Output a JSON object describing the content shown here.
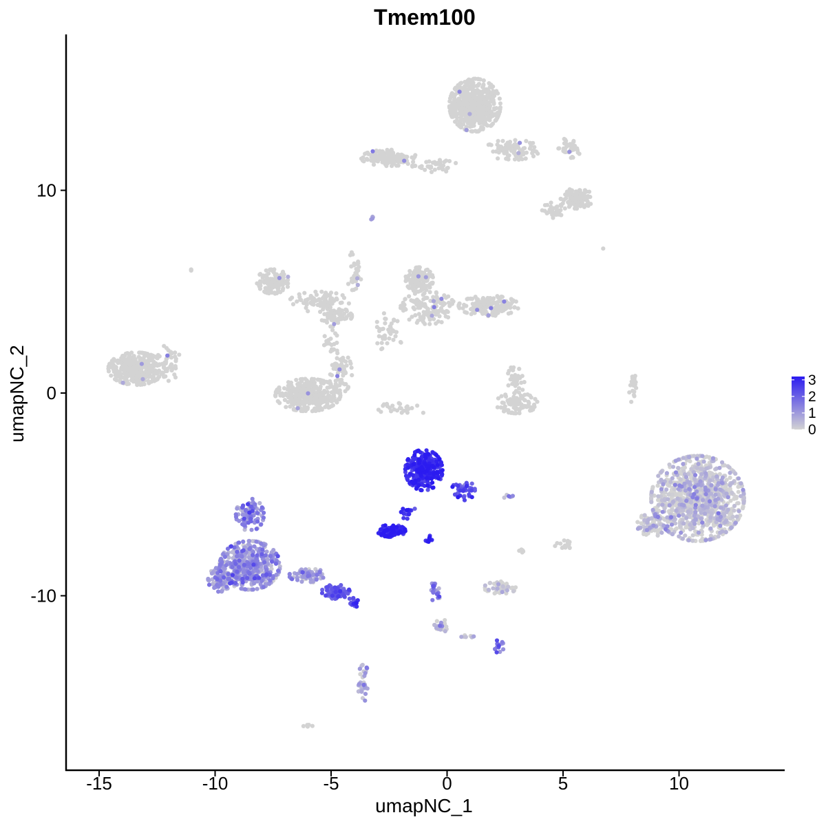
{
  "chart_data": {
    "type": "scatter",
    "title": "Tmem100",
    "xlabel": "umapNC_1",
    "ylabel": "umapNC_2",
    "xlim": [
      -16.5,
      14.5
    ],
    "ylim": [
      -18.5,
      17.5
    ],
    "x_ticks": [
      -15,
      -10,
      -5,
      0,
      5,
      10
    ],
    "x_tick_labels": [
      "-15",
      "-10",
      "-5",
      "0",
      "5",
      "10"
    ],
    "y_ticks": [
      -10,
      0,
      10
    ],
    "y_tick_labels": [
      "-10",
      "0",
      "10"
    ],
    "grid": false,
    "legend_position": "right",
    "color_scale": {
      "low_color": "#d3d3d3",
      "high_color": "#2b1bf0",
      "min": 0,
      "max": 3.2,
      "ticks": [
        0,
        1,
        2,
        3
      ],
      "tick_labels": [
        "0",
        "1",
        "2",
        "3"
      ]
    },
    "clusters": [
      {
        "cx": 1.2,
        "cy": 14.2,
        "rx": 1.1,
        "ry": 1.3,
        "n": 520,
        "expr": 0
      },
      {
        "cx": 2.8,
        "cy": 12.0,
        "rx": 1.2,
        "ry": 0.5,
        "n": 80,
        "expr": 0
      },
      {
        "cx": -2.5,
        "cy": 11.6,
        "rx": 1.2,
        "ry": 0.4,
        "n": 140,
        "expr": 0
      },
      {
        "cx": -0.5,
        "cy": 11.2,
        "rx": 1.0,
        "ry": 0.3,
        "n": 40,
        "expr": 0
      },
      {
        "cx": 5.3,
        "cy": 12.1,
        "rx": 0.5,
        "ry": 0.5,
        "n": 40,
        "expr": 0
      },
      {
        "cx": 5.6,
        "cy": 9.6,
        "rx": 0.7,
        "ry": 0.5,
        "n": 110,
        "expr": 0
      },
      {
        "cx": 4.6,
        "cy": 9.0,
        "rx": 0.5,
        "ry": 0.4,
        "n": 40,
        "expr": 0
      },
      {
        "cx": -7.5,
        "cy": 5.5,
        "rx": 0.7,
        "ry": 0.6,
        "n": 110,
        "expr": 0
      },
      {
        "cx": -5.5,
        "cy": 4.5,
        "rx": 1.3,
        "ry": 0.5,
        "n": 80,
        "expr": 0
      },
      {
        "cx": -4.8,
        "cy": 3.8,
        "rx": 0.7,
        "ry": 0.4,
        "n": 60,
        "expr": 0
      },
      {
        "cx": -4.0,
        "cy": 6.0,
        "rx": 0.3,
        "ry": 1.2,
        "n": 35,
        "expr": 0
      },
      {
        "cx": -1.2,
        "cy": 5.6,
        "rx": 0.6,
        "ry": 0.6,
        "n": 160,
        "expr": 0
      },
      {
        "cx": -0.8,
        "cy": 4.2,
        "rx": 1.2,
        "ry": 0.8,
        "n": 140,
        "expr": 0
      },
      {
        "cx": 1.8,
        "cy": 4.3,
        "rx": 1.3,
        "ry": 0.5,
        "n": 150,
        "expr": 0
      },
      {
        "cx": -2.5,
        "cy": 3.0,
        "rx": 0.6,
        "ry": 1.0,
        "n": 40,
        "expr": 0
      },
      {
        "cx": -13.4,
        "cy": 1.2,
        "rx": 1.2,
        "ry": 0.8,
        "n": 380,
        "expr": 0
      },
      {
        "cx": -12.0,
        "cy": 1.5,
        "rx": 0.5,
        "ry": 0.9,
        "n": 40,
        "expr": 0
      },
      {
        "cx": -6.0,
        "cy": -0.1,
        "rx": 1.4,
        "ry": 0.8,
        "n": 340,
        "expr": 0
      },
      {
        "cx": -4.6,
        "cy": 1.0,
        "rx": 0.5,
        "ry": 1.0,
        "n": 70,
        "expr": 0
      },
      {
        "cx": -5.0,
        "cy": 2.5,
        "rx": 0.3,
        "ry": 0.8,
        "n": 20,
        "expr": 0
      },
      {
        "cx": -2.0,
        "cy": -0.8,
        "rx": 1.2,
        "ry": 0.3,
        "n": 25,
        "expr": 0
      },
      {
        "cx": 3.0,
        "cy": -0.5,
        "rx": 0.9,
        "ry": 0.5,
        "n": 90,
        "expr": 0
      },
      {
        "cx": 3.0,
        "cy": 0.7,
        "rx": 0.4,
        "ry": 0.7,
        "n": 30,
        "expr": 0
      },
      {
        "cx": 8.0,
        "cy": 0.3,
        "rx": 0.15,
        "ry": 0.8,
        "n": 20,
        "expr": 0
      },
      {
        "cx": 10.8,
        "cy": -5.2,
        "rx": 2.0,
        "ry": 2.1,
        "n": 1000,
        "expr": 0.05
      },
      {
        "cx": 8.8,
        "cy": -6.5,
        "rx": 0.6,
        "ry": 0.6,
        "n": 80,
        "expr": 0.05
      },
      {
        "cx": -1.0,
        "cy": -3.8,
        "rx": 0.8,
        "ry": 1.0,
        "n": 280,
        "expr": 2.85
      },
      {
        "cx": 0.7,
        "cy": -4.8,
        "rx": 0.5,
        "ry": 0.5,
        "n": 40,
        "expr": 2.2
      },
      {
        "cx": -2.4,
        "cy": -6.8,
        "rx": 0.6,
        "ry": 0.3,
        "n": 110,
        "expr": 2.9
      },
      {
        "cx": -1.7,
        "cy": -5.9,
        "rx": 0.4,
        "ry": 0.3,
        "n": 15,
        "expr": 2.7
      },
      {
        "cx": -0.8,
        "cy": -7.2,
        "rx": 0.15,
        "ry": 0.2,
        "n": 8,
        "expr": 3.0
      },
      {
        "cx": -8.5,
        "cy": -8.5,
        "rx": 1.3,
        "ry": 1.2,
        "n": 500,
        "expr": 1.0
      },
      {
        "cx": -8.5,
        "cy": -6.0,
        "rx": 0.6,
        "ry": 0.8,
        "n": 100,
        "expr": 1.2
      },
      {
        "cx": -9.8,
        "cy": -9.2,
        "rx": 0.5,
        "ry": 0.6,
        "n": 80,
        "expr": 0.8
      },
      {
        "cx": -6.0,
        "cy": -9.0,
        "rx": 0.8,
        "ry": 0.35,
        "n": 70,
        "expr": 0.9
      },
      {
        "cx": -4.8,
        "cy": -9.8,
        "rx": 0.6,
        "ry": 0.35,
        "n": 70,
        "expr": 2.0
      },
      {
        "cx": -4.0,
        "cy": -10.3,
        "rx": 0.3,
        "ry": 0.25,
        "n": 20,
        "expr": 2.3
      },
      {
        "cx": -0.5,
        "cy": -9.8,
        "rx": 0.2,
        "ry": 0.6,
        "n": 20,
        "expr": 1.3
      },
      {
        "cx": -0.3,
        "cy": -11.5,
        "rx": 0.3,
        "ry": 0.4,
        "n": 25,
        "expr": 0.3
      },
      {
        "cx": 2.3,
        "cy": -9.6,
        "rx": 0.7,
        "ry": 0.3,
        "n": 50,
        "expr": 0.05
      },
      {
        "cx": 2.2,
        "cy": -12.5,
        "rx": 0.25,
        "ry": 0.3,
        "n": 15,
        "expr": 1.5
      },
      {
        "cx": 1.0,
        "cy": -12.0,
        "rx": 0.4,
        "ry": 0.1,
        "n": 8,
        "expr": 0.2
      },
      {
        "cx": -3.6,
        "cy": -14.3,
        "rx": 0.25,
        "ry": 0.9,
        "n": 35,
        "expr": 0.5
      },
      {
        "cx": 5.0,
        "cy": -7.5,
        "rx": 0.35,
        "ry": 0.25,
        "n": 15,
        "expr": 0
      },
      {
        "cx": 3.2,
        "cy": -7.8,
        "rx": 0.15,
        "ry": 0.2,
        "n": 6,
        "expr": 0
      },
      {
        "cx": 2.7,
        "cy": -5.1,
        "rx": 0.3,
        "ry": 0.1,
        "n": 6,
        "expr": 0.9
      },
      {
        "cx": -11.0,
        "cy": 6.0,
        "rx": 0.1,
        "ry": 0.1,
        "n": 3,
        "expr": 0
      },
      {
        "cx": -6.0,
        "cy": -16.4,
        "rx": 0.2,
        "ry": 0.1,
        "n": 5,
        "expr": 0
      },
      {
        "cx": -3.2,
        "cy": 8.7,
        "rx": 0.15,
        "ry": 0.15,
        "n": 4,
        "expr": 0.7
      },
      {
        "cx": 6.7,
        "cy": 7.1,
        "rx": 0.05,
        "ry": 0.05,
        "n": 1,
        "expr": 0
      }
    ]
  }
}
